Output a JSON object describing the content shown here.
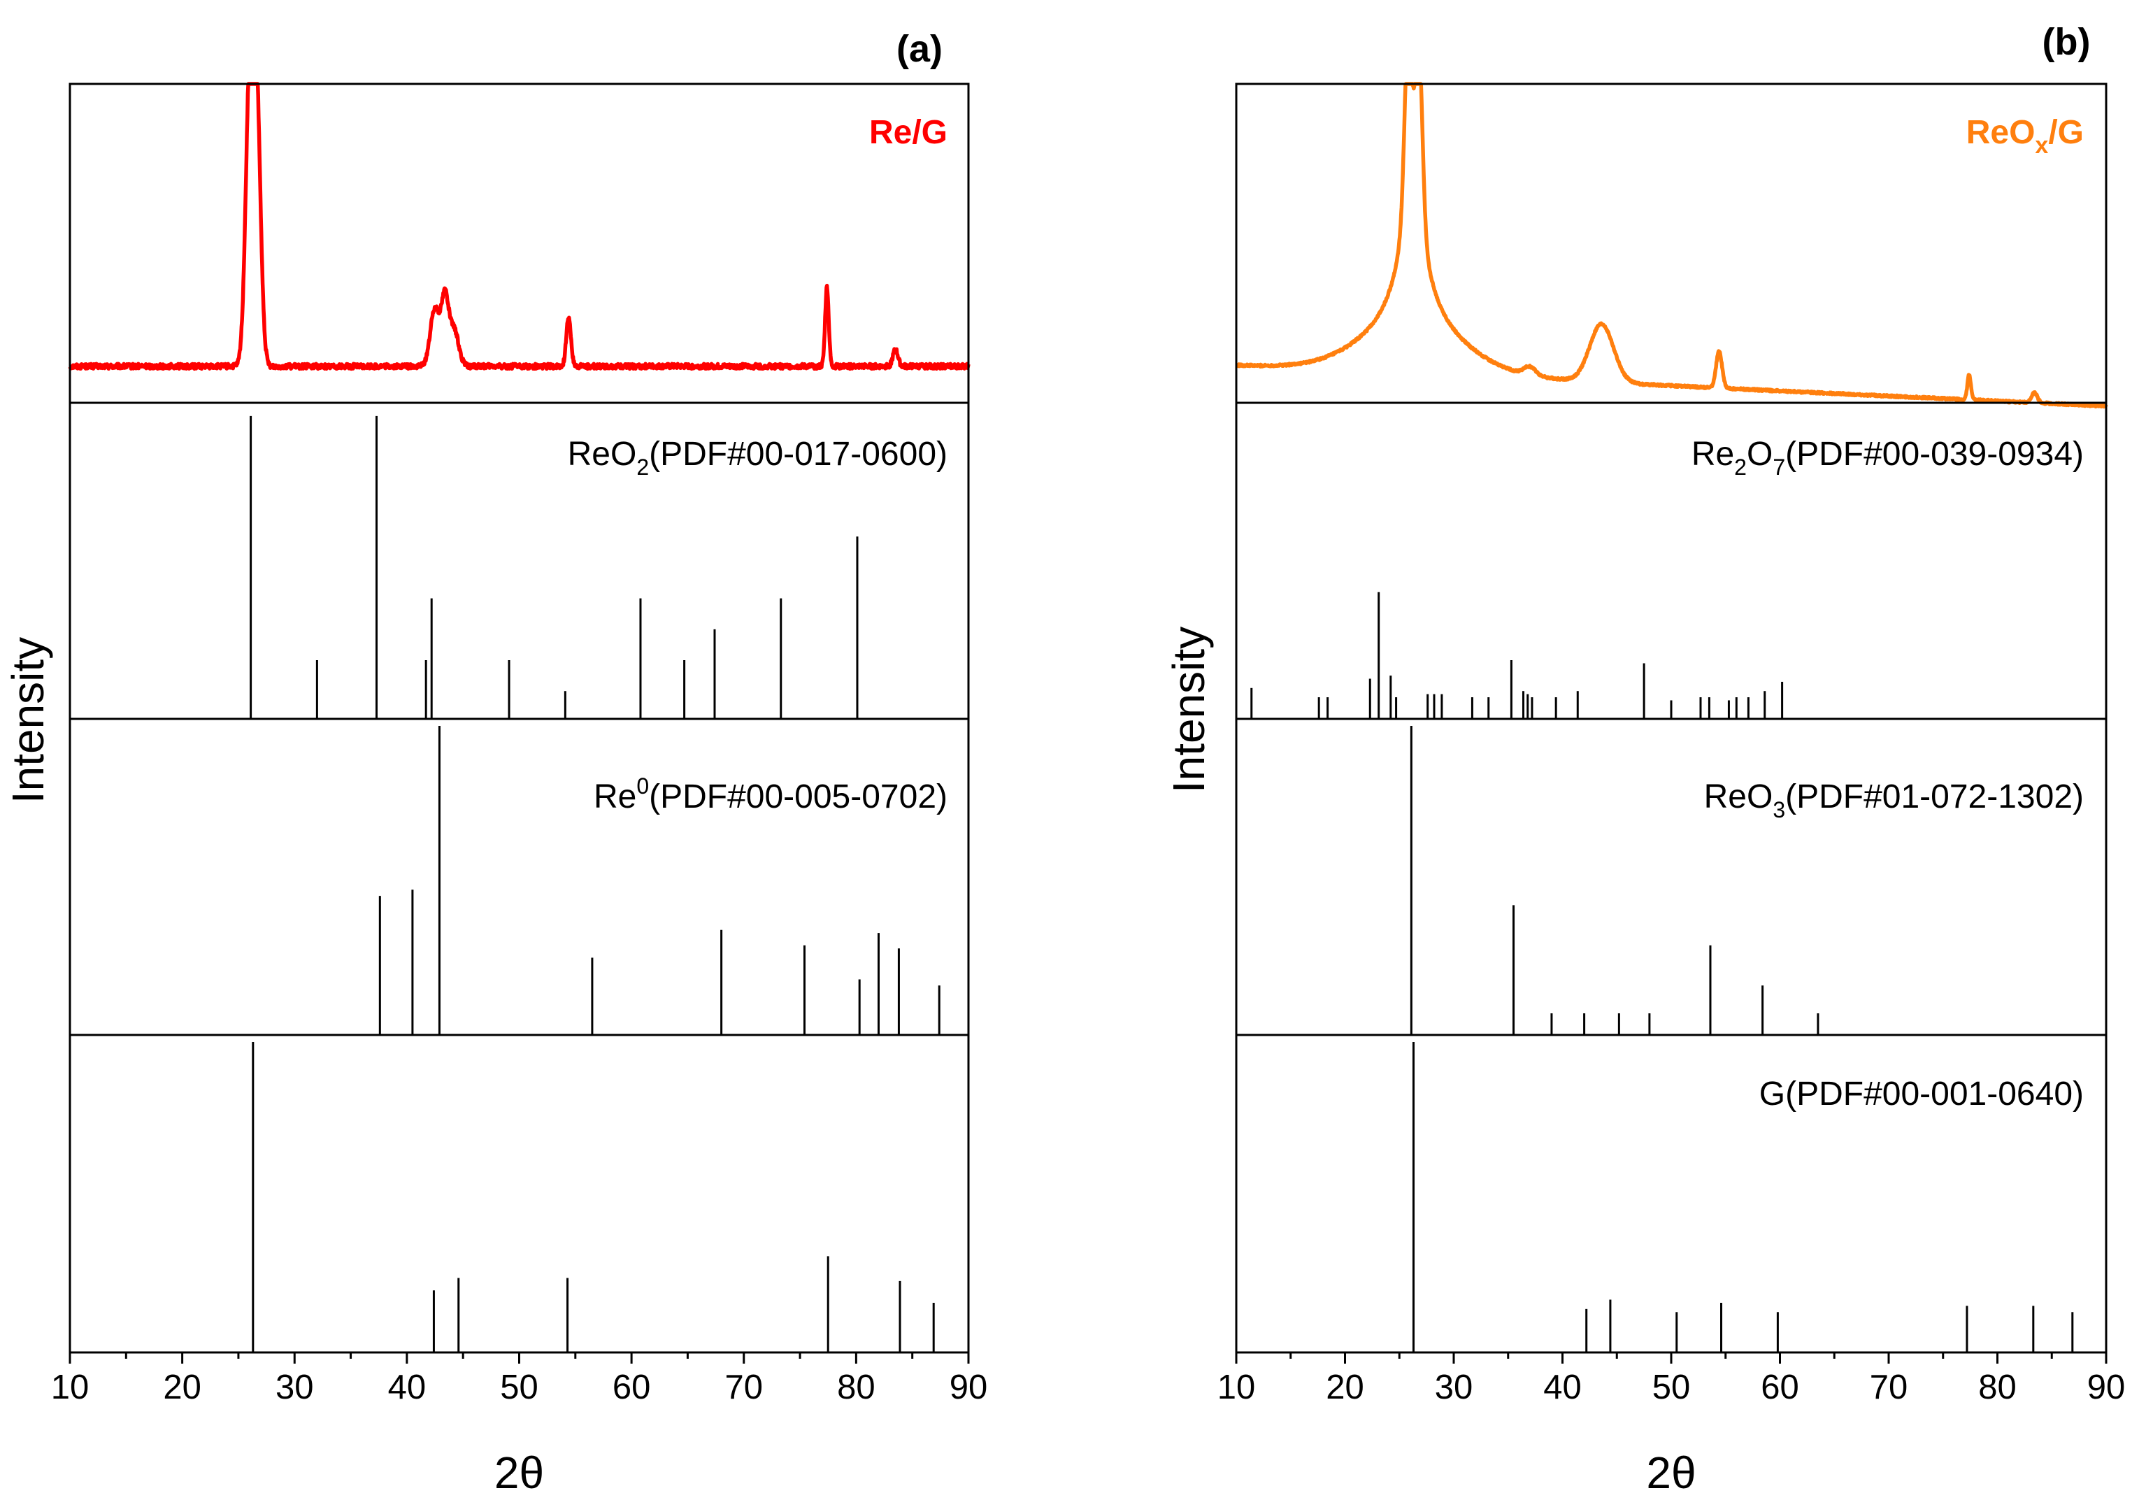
{
  "chart_data": [
    {
      "type": "line",
      "panel_label": "(a)",
      "xlabel": "2θ",
      "ylabel": "Intensity",
      "xlim": [
        10,
        90
      ],
      "xticks": [
        10,
        20,
        30,
        40,
        50,
        60,
        70,
        80,
        90
      ],
      "stacked_subplots": [
        {
          "kind": "line",
          "label_main": "Re/G",
          "label_sub": "",
          "label_tail": "",
          "color": "#ff0000",
          "baseline": 0.22,
          "noise": 0.015,
          "slope": 0,
          "broad_peaks": [],
          "peaks": [
            {
              "x": 26.0,
              "height": 1.6,
              "width": 0.8
            },
            {
              "x": 26.6,
              "height": 1.6,
              "width": 0.8
            },
            {
              "x": 42.5,
              "height": 0.35,
              "width": 0.9
            },
            {
              "x": 43.4,
              "height": 0.4,
              "width": 0.7
            },
            {
              "x": 44.2,
              "height": 0.22,
              "width": 0.9
            },
            {
              "x": 54.4,
              "height": 0.3,
              "width": 0.45
            },
            {
              "x": 77.4,
              "height": 0.48,
              "width": 0.35
            },
            {
              "x": 83.5,
              "height": 0.1,
              "width": 0.5
            }
          ]
        },
        {
          "kind": "sticks",
          "label_main": "ReO",
          "label_sub": "2",
          "label_tail": "(PDF#00-017-0600)",
          "color": "#000000",
          "sticks": [
            [
              26.1,
              0.98
            ],
            [
              32.0,
              0.19
            ],
            [
              37.3,
              0.98
            ],
            [
              41.7,
              0.19
            ],
            [
              42.2,
              0.39
            ],
            [
              49.1,
              0.19
            ],
            [
              54.1,
              0.09
            ],
            [
              60.8,
              0.39
            ],
            [
              64.7,
              0.19
            ],
            [
              67.4,
              0.29
            ],
            [
              73.3,
              0.39
            ],
            [
              80.1,
              0.59
            ]
          ]
        },
        {
          "kind": "sticks",
          "label_main": "Re",
          "label_sup": "0",
          "label_tail": "(PDF#00-005-0702)",
          "color": "#000000",
          "sticks": [
            [
              37.6,
              0.45
            ],
            [
              40.5,
              0.47
            ],
            [
              42.9,
              1.0
            ],
            [
              56.5,
              0.25
            ],
            [
              68.0,
              0.34
            ],
            [
              75.4,
              0.29
            ],
            [
              80.3,
              0.18
            ],
            [
              82.0,
              0.33
            ],
            [
              83.8,
              0.28
            ],
            [
              87.4,
              0.16
            ]
          ]
        },
        {
          "kind": "sticks",
          "label_main": "",
          "label_tail": "",
          "color": "#000000",
          "sticks": [
            [
              26.3,
              1.0
            ],
            [
              42.4,
              0.2
            ],
            [
              44.6,
              0.24
            ],
            [
              54.3,
              0.24
            ],
            [
              77.5,
              0.31
            ],
            [
              83.9,
              0.23
            ],
            [
              86.9,
              0.16
            ]
          ]
        }
      ]
    },
    {
      "type": "line",
      "panel_label": "(b)",
      "xlabel": "2θ",
      "ylabel": "Intensity",
      "xlim": [
        10,
        90
      ],
      "xticks": [
        10,
        20,
        30,
        40,
        50,
        60,
        70,
        80,
        90
      ],
      "stacked_subplots": [
        {
          "kind": "line",
          "label_main": "ReO",
          "label_sub": "x",
          "label_tail": "/G",
          "color": "#ff7f0e",
          "baseline": 0.22,
          "noise": 0.006,
          "slope": -0.003,
          "broad_peaks": [
            {
              "x": 26.2,
              "height": 0.9,
              "width": 2.8,
              "shape": "lorentz"
            },
            {
              "x": 26.2,
              "height": 0.25,
              "width": 10.0,
              "shape": "gauss"
            },
            {
              "x": 43.6,
              "height": 0.35,
              "width": 2.4,
              "shape": "gauss"
            },
            {
              "x": 37.0,
              "height": 0.05,
              "width": 1.2,
              "shape": "gauss"
            }
          ],
          "peaks": [
            {
              "x": 25.8,
              "height": 1.0,
              "width": 0.7
            },
            {
              "x": 26.8,
              "height": 1.0,
              "width": 0.7
            },
            {
              "x": 54.4,
              "height": 0.22,
              "width": 0.6
            },
            {
              "x": 77.4,
              "height": 0.15,
              "width": 0.35
            },
            {
              "x": 83.4,
              "height": 0.06,
              "width": 0.6
            }
          ]
        },
        {
          "kind": "sticks",
          "label_main": "Re",
          "label_sub": "2",
          "label_mid": "O",
          "label_sub2": "7",
          "label_tail": "(PDF#00-039-0934)",
          "color": "#000000",
          "sticks": [
            [
              11.4,
              0.1
            ],
            [
              17.6,
              0.07
            ],
            [
              18.4,
              0.07
            ],
            [
              22.3,
              0.13
            ],
            [
              23.1,
              0.41
            ],
            [
              24.2,
              0.14
            ],
            [
              24.7,
              0.07
            ],
            [
              27.6,
              0.08
            ],
            [
              28.2,
              0.08
            ],
            [
              28.9,
              0.08
            ],
            [
              31.7,
              0.07
            ],
            [
              33.2,
              0.07
            ],
            [
              35.3,
              0.19
            ],
            [
              36.4,
              0.09
            ],
            [
              36.8,
              0.08
            ],
            [
              37.2,
              0.07
            ],
            [
              39.4,
              0.07
            ],
            [
              41.4,
              0.09
            ],
            [
              47.5,
              0.18
            ],
            [
              50.0,
              0.06
            ],
            [
              52.7,
              0.07
            ],
            [
              53.5,
              0.07
            ],
            [
              55.3,
              0.06
            ],
            [
              56.0,
              0.07
            ],
            [
              57.1,
              0.07
            ],
            [
              58.6,
              0.09
            ],
            [
              60.2,
              0.12
            ]
          ]
        },
        {
          "kind": "sticks",
          "label_main": "ReO",
          "label_sub": "3",
          "label_tail": "(PDF#01-072-1302)",
          "color": "#000000",
          "sticks": [
            [
              26.1,
              1.0
            ],
            [
              35.5,
              0.42
            ],
            [
              39.0,
              0.07
            ],
            [
              42.0,
              0.07
            ],
            [
              45.2,
              0.07
            ],
            [
              48.0,
              0.07
            ],
            [
              53.6,
              0.29
            ],
            [
              58.4,
              0.16
            ],
            [
              63.5,
              0.07
            ]
          ]
        },
        {
          "kind": "sticks",
          "label_main": "G(PDF#00-001-0640)",
          "label_tail": "",
          "color": "#000000",
          "sticks": [
            [
              26.3,
              1.0
            ],
            [
              42.2,
              0.14
            ],
            [
              44.4,
              0.17
            ],
            [
              50.5,
              0.13
            ],
            [
              54.6,
              0.16
            ],
            [
              59.8,
              0.13
            ],
            [
              77.2,
              0.15
            ],
            [
              83.3,
              0.15
            ],
            [
              86.9,
              0.13
            ]
          ]
        }
      ]
    }
  ]
}
